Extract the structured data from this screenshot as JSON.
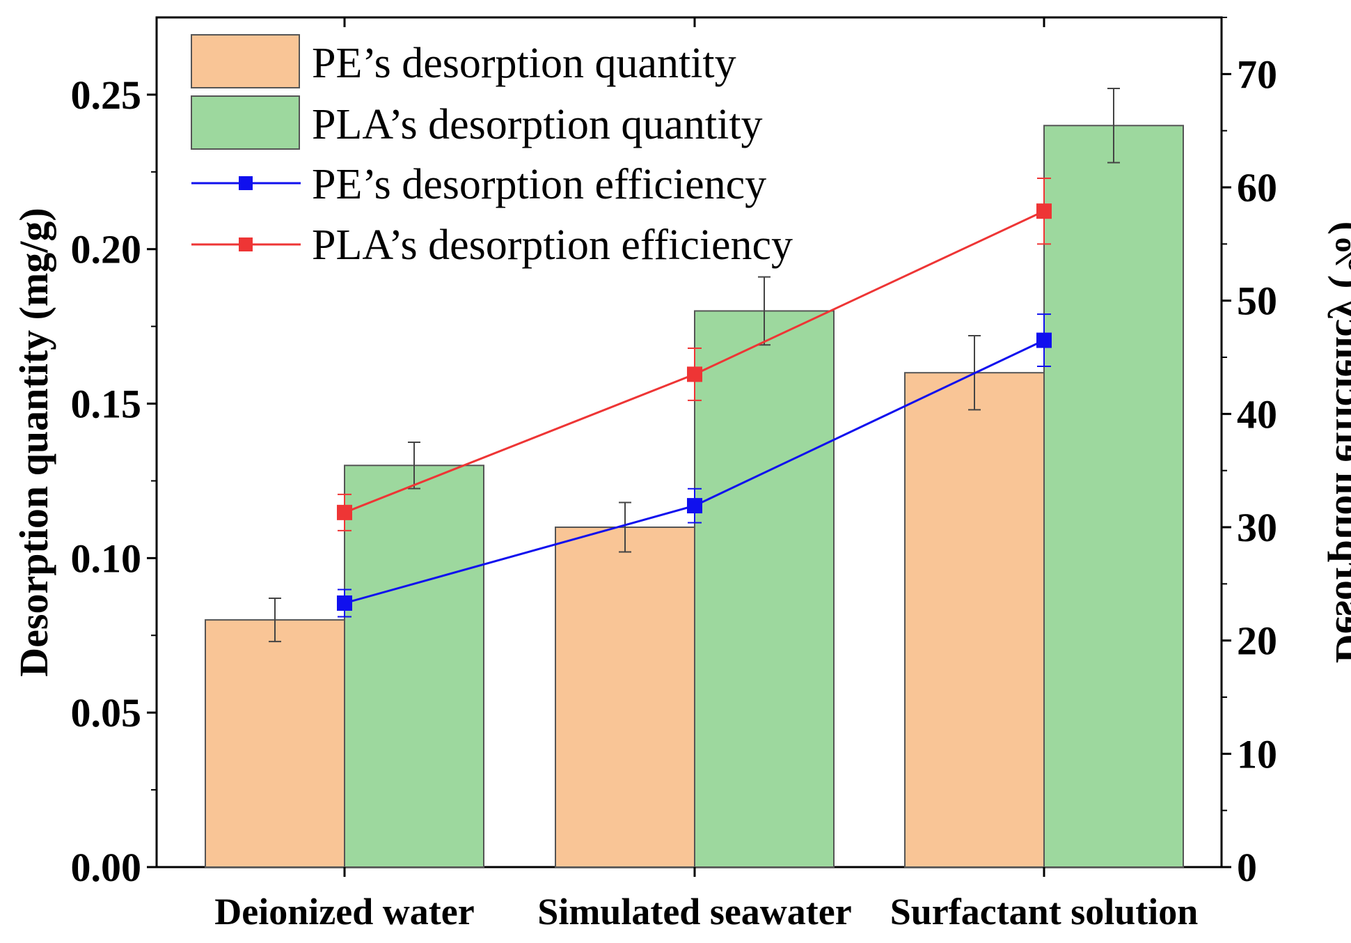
{
  "chart_data": {
    "type": "bar",
    "title": "",
    "categories": [
      "Deionized water",
      "Simulated seawater",
      "Surfactant solution"
    ],
    "xlabel": "",
    "ylabel": "Desorption quantity (mg/g)",
    "ylabel_right": "Desorption efficiency (%)",
    "ylim": [
      0,
      0.275
    ],
    "ylim_right": [
      0,
      75
    ],
    "yticks": [
      "0.00",
      "0.05",
      "0.10",
      "0.15",
      "0.20",
      "0.25"
    ],
    "yticks_right": [
      "0",
      "10",
      "20",
      "30",
      "40",
      "50",
      "60",
      "70"
    ],
    "legend_position": "top-left",
    "series": [
      {
        "name": "PE’s desorption quantity",
        "kind": "bar",
        "axis": "left",
        "color": "#f9c596",
        "values": [
          0.08,
          0.11,
          0.16
        ],
        "errors": [
          0.007,
          0.008,
          0.012
        ]
      },
      {
        "name": "PLA’s desorption quantity",
        "kind": "bar",
        "axis": "left",
        "color": "#9dd89e",
        "values": [
          0.13,
          0.18,
          0.24
        ],
        "errors": [
          0.0075,
          0.011,
          0.012
        ]
      },
      {
        "name": "PE’s desorption efficiency",
        "kind": "line",
        "axis": "right",
        "color": "#1010ee",
        "values": [
          23.3,
          31.9,
          46.5
        ],
        "errors": [
          1.2,
          1.5,
          2.3
        ]
      },
      {
        "name": "PLA’s desorption efficiency",
        "kind": "line",
        "axis": "right",
        "color": "#ee3535",
        "values": [
          31.3,
          43.5,
          57.9
        ],
        "errors": [
          1.6,
          2.3,
          2.9
        ]
      }
    ]
  }
}
